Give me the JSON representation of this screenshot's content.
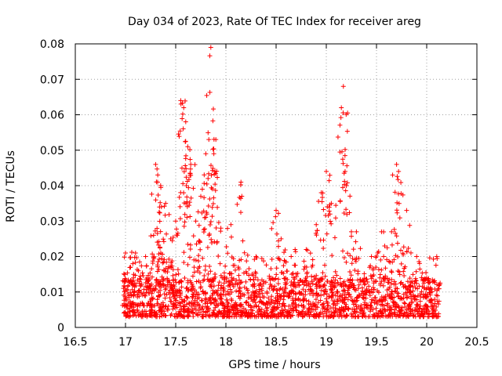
{
  "chart_data": {
    "type": "scatter",
    "title": "Day 034 of 2023, Rate Of TEC Index for receiver areg",
    "xlabel": "GPS time / hours",
    "ylabel": "ROTI / TECUs",
    "xlim": [
      16.5,
      20.5
    ],
    "ylim": [
      0,
      0.08
    ],
    "xticks": [
      16.5,
      17,
      17.5,
      18,
      18.5,
      19,
      19.5,
      20,
      20.5
    ],
    "xtick_labels": [
      "16.5",
      "17",
      "17.5",
      "18",
      "18.5",
      "19",
      "19.5",
      "20",
      "20.5"
    ],
    "yticks": [
      0,
      0.01,
      0.02,
      0.03,
      0.04,
      0.05,
      0.06,
      0.07,
      0.08
    ],
    "ytick_labels": [
      "0",
      "0.01",
      "0.02",
      "0.03",
      "0.04",
      "0.05",
      "0.06",
      "0.07",
      "0.08"
    ],
    "grid": true,
    "marker": "+",
    "color": "#ff0000",
    "series": [
      {
        "name": "ROTI",
        "x_range": [
          16.97,
          20.13
        ],
        "bulk_range": [
          0.001,
          0.022
        ],
        "note": "dense band of points across the whole interval; additional peaks listed below",
        "x": [
          17.0,
          17.05,
          17.1,
          17.2,
          17.28,
          17.3,
          17.32,
          17.35,
          17.4,
          17.45,
          17.5,
          17.55,
          17.58,
          17.6,
          17.62,
          17.65,
          17.7,
          17.75,
          17.8,
          17.83,
          17.85,
          17.88,
          17.9,
          17.95,
          18.05,
          18.15,
          18.3,
          18.5,
          18.55,
          18.65,
          18.8,
          18.9,
          18.95,
          19.0,
          19.05,
          19.15,
          19.17,
          19.2,
          19.25,
          19.3,
          19.45,
          19.55,
          19.65,
          19.7,
          19.72,
          19.8,
          19.9,
          20.0,
          20.1
        ],
        "y": [
          0.021,
          0.017,
          0.021,
          0.02,
          0.026,
          0.046,
          0.041,
          0.04,
          0.035,
          0.025,
          0.03,
          0.064,
          0.062,
          0.058,
          0.051,
          0.046,
          0.03,
          0.037,
          0.049,
          0.053,
          0.079,
          0.049,
          0.053,
          0.028,
          0.029,
          0.041,
          0.02,
          0.033,
          0.025,
          0.02,
          0.022,
          0.029,
          0.038,
          0.044,
          0.035,
          0.062,
          0.068,
          0.04,
          0.027,
          0.027,
          0.02,
          0.027,
          0.027,
          0.046,
          0.044,
          0.033,
          0.02,
          0.014,
          0.02
        ]
      }
    ]
  }
}
